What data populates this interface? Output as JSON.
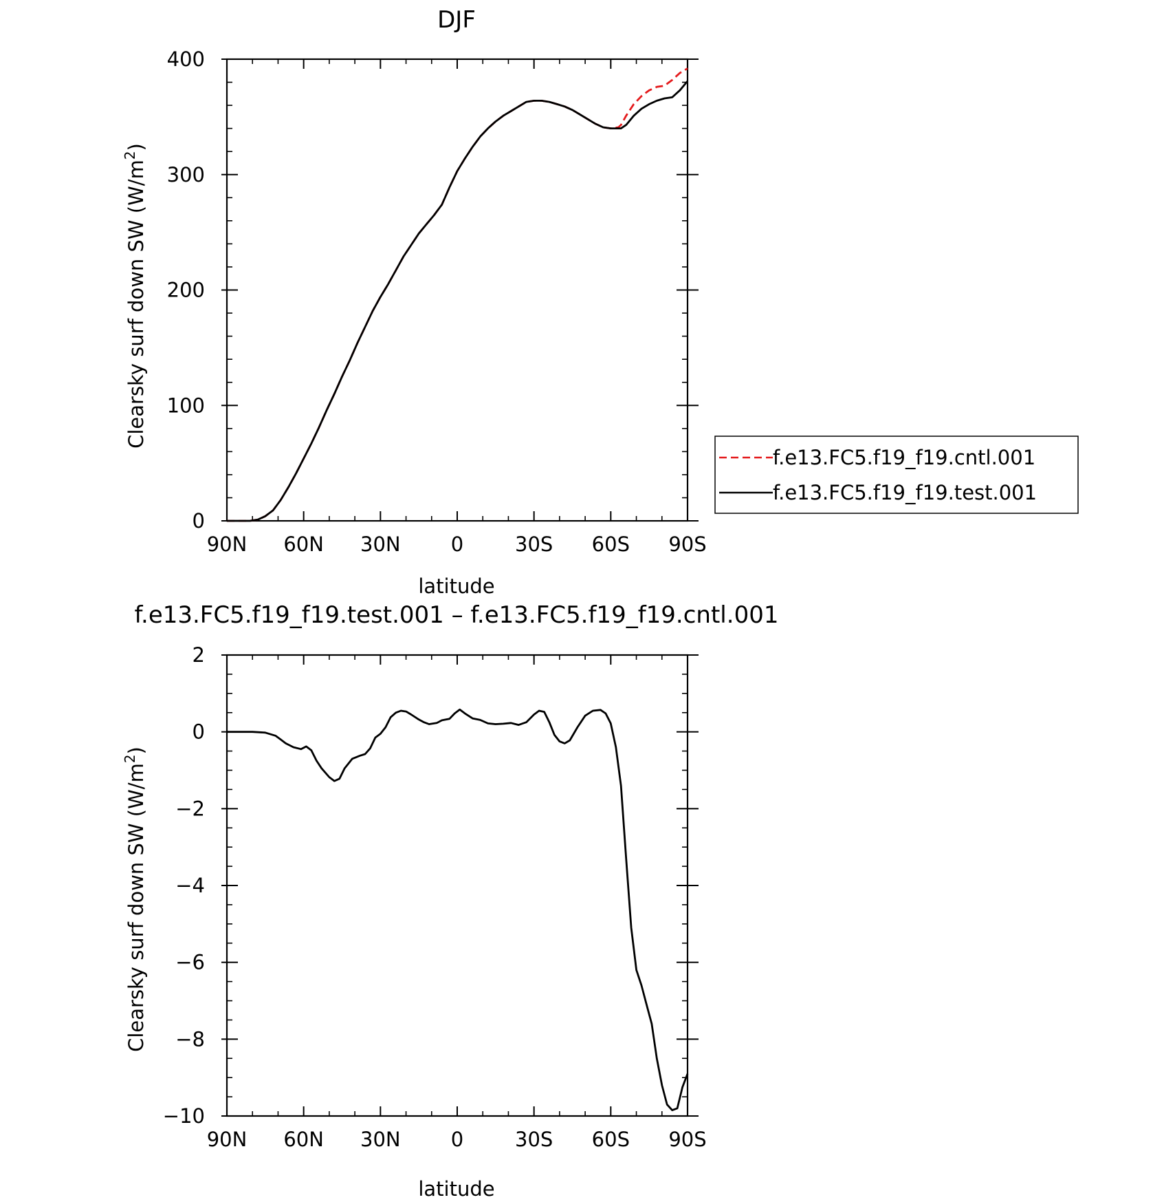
{
  "chart_data": [
    {
      "type": "line",
      "title": "DJF",
      "xlabel": "latitude",
      "ylabel": "Clearsky surf down SW (W/m²)",
      "ylabel_main": "Clearsky surf down SW (W/m",
      "ylabel_sup": "2",
      "ylabel_close": ")",
      "xlim": [
        90,
        -90
      ],
      "ylim": [
        0,
        400
      ],
      "x_ticks": [
        {
          "value": 90,
          "label": "90N"
        },
        {
          "value": 60,
          "label": "60N"
        },
        {
          "value": 30,
          "label": "30N"
        },
        {
          "value": 0,
          "label": "0"
        },
        {
          "value": -30,
          "label": "30S"
        },
        {
          "value": -60,
          "label": "60S"
        },
        {
          "value": -90,
          "label": "90S"
        }
      ],
      "y_ticks": [
        {
          "value": 0,
          "label": "0"
        },
        {
          "value": 100,
          "label": "100"
        },
        {
          "value": 200,
          "label": "200"
        },
        {
          "value": 300,
          "label": "300"
        },
        {
          "value": 400,
          "label": "400"
        }
      ],
      "legend": {
        "placement": "right",
        "entries": [
          {
            "name": "f.e13.FC5.f19_f19.cntl.001",
            "color": "#e41a1c",
            "dash": true
          },
          {
            "name": "f.e13.FC5.f19_f19.test.001",
            "color": "#000000",
            "dash": false
          }
        ]
      },
      "series": [
        {
          "name": "f.e13.FC5.f19_f19.cntl.001",
          "color": "#e41a1c",
          "dash": true,
          "x": [
            90,
            85,
            81,
            78,
            75,
            72,
            69,
            66,
            63,
            60,
            57,
            54,
            51,
            48,
            45,
            42,
            39,
            36,
            33,
            30,
            27,
            24,
            21,
            18,
            15,
            12,
            9,
            6,
            3,
            0,
            -3,
            -6,
            -9,
            -12,
            -15,
            -18,
            -21,
            -24,
            -27,
            -30,
            -33,
            -36,
            -39,
            -42,
            -45,
            -48,
            -51,
            -54,
            -57,
            -60,
            -63,
            -64,
            -66,
            -69,
            -72,
            -75,
            -78,
            -81,
            -84,
            -87,
            -90
          ],
          "y": [
            0,
            0,
            0,
            1,
            4,
            9,
            18,
            29,
            41,
            54,
            67,
            81,
            96,
            110,
            125,
            139,
            154,
            168,
            182,
            194,
            205,
            217,
            229,
            239,
            249,
            257,
            265,
            274,
            289,
            303,
            314,
            324,
            333,
            340,
            346,
            351,
            355,
            359,
            363,
            364,
            364,
            363,
            361,
            359,
            356,
            352,
            348,
            344,
            341,
            340,
            341,
            343,
            351,
            361,
            368,
            373,
            376,
            377,
            382,
            388,
            392
          ]
        },
        {
          "name": "f.e13.FC5.f19_f19.test.001",
          "color": "#000000",
          "dash": false,
          "x": [
            90,
            85,
            81,
            78,
            75,
            72,
            69,
            66,
            63,
            60,
            57,
            54,
            51,
            48,
            45,
            42,
            39,
            36,
            33,
            30,
            27,
            24,
            21,
            18,
            15,
            12,
            9,
            6,
            3,
            0,
            -3,
            -6,
            -9,
            -12,
            -15,
            -18,
            -21,
            -24,
            -27,
            -30,
            -33,
            -36,
            -39,
            -42,
            -45,
            -48,
            -51,
            -54,
            -57,
            -60,
            -63,
            -64,
            -66,
            -69,
            -72,
            -75,
            -78,
            -81,
            -84,
            -87,
            -90
          ],
          "y": [
            0,
            0,
            0,
            1,
            4,
            9,
            18,
            29,
            41,
            54,
            67,
            81,
            96,
            110,
            125,
            139,
            154,
            168,
            182,
            194,
            205,
            217,
            229,
            239,
            249,
            257,
            265,
            274,
            289,
            303,
            314,
            324,
            333,
            340,
            346,
            351,
            355,
            359,
            363,
            364,
            364,
            363,
            361,
            359,
            356,
            352,
            348,
            344,
            341,
            340,
            340,
            340,
            343,
            351,
            357,
            361,
            364,
            366,
            367,
            373,
            381
          ]
        }
      ]
    },
    {
      "type": "line",
      "title": "f.e13.FC5.f19_f19.test.001 – f.e13.FC5.f19_f19.cntl.001",
      "xlabel": "latitude",
      "ylabel": "Clearsky surf down SW (W/m²)",
      "ylabel_main": "Clearsky surf down SW (W/m",
      "ylabel_sup": "2",
      "ylabel_close": ")",
      "xlim": [
        90,
        -90
      ],
      "ylim": [
        -10,
        2
      ],
      "x_ticks": [
        {
          "value": 90,
          "label": "90N"
        },
        {
          "value": 60,
          "label": "60N"
        },
        {
          "value": 30,
          "label": "30N"
        },
        {
          "value": 0,
          "label": "0"
        },
        {
          "value": -30,
          "label": "30S"
        },
        {
          "value": -60,
          "label": "60S"
        },
        {
          "value": -90,
          "label": "90S"
        }
      ],
      "y_ticks": [
        {
          "value": -10,
          "label": "−10"
        },
        {
          "value": -8,
          "label": "−8"
        },
        {
          "value": -6,
          "label": "−6"
        },
        {
          "value": -4,
          "label": "−4"
        },
        {
          "value": -2,
          "label": "−2"
        },
        {
          "value": 0,
          "label": "0"
        },
        {
          "value": 2,
          "label": "2"
        }
      ],
      "series": [
        {
          "color": "#000000",
          "dash": false,
          "x": [
            90,
            80,
            75,
            71,
            69,
            67,
            64,
            61,
            59,
            57,
            55,
            53,
            50,
            48,
            46,
            44,
            41,
            38,
            36,
            34,
            32,
            30,
            28,
            26,
            24,
            22,
            20,
            18,
            15,
            13,
            11,
            8,
            6,
            3,
            1,
            -1,
            -3,
            -6,
            -9,
            -12,
            -15,
            -18,
            -21,
            -24,
            -27,
            -30,
            -32,
            -34,
            -36,
            -38,
            -40,
            -42,
            -44,
            -47,
            -50,
            -53,
            -56,
            -58,
            -60,
            -62,
            -64,
            -66,
            -68,
            -70,
            -72,
            -74,
            -76,
            -78,
            -80,
            -82,
            -84,
            -86,
            -88,
            -90
          ],
          "y": [
            0,
            0,
            -0.02,
            -0.1,
            -0.2,
            -0.3,
            -0.4,
            -0.45,
            -0.38,
            -0.48,
            -0.75,
            -0.95,
            -1.18,
            -1.28,
            -1.22,
            -0.95,
            -0.7,
            -0.62,
            -0.58,
            -0.43,
            -0.15,
            -0.05,
            0.12,
            0.38,
            0.5,
            0.55,
            0.53,
            0.45,
            0.32,
            0.25,
            0.2,
            0.23,
            0.3,
            0.34,
            0.48,
            0.58,
            0.48,
            0.35,
            0.31,
            0.22,
            0.2,
            0.21,
            0.23,
            0.18,
            0.25,
            0.45,
            0.55,
            0.52,
            0.25,
            -0.08,
            -0.25,
            -0.3,
            -0.22,
            0.12,
            0.42,
            0.55,
            0.57,
            0.48,
            0.22,
            -0.4,
            -1.4,
            -3.3,
            -5.1,
            -6.2,
            -6.6,
            -7.1,
            -7.6,
            -8.5,
            -9.2,
            -9.7,
            -9.85,
            -9.8,
            -9.25,
            -8.9
          ]
        }
      ]
    }
  ]
}
